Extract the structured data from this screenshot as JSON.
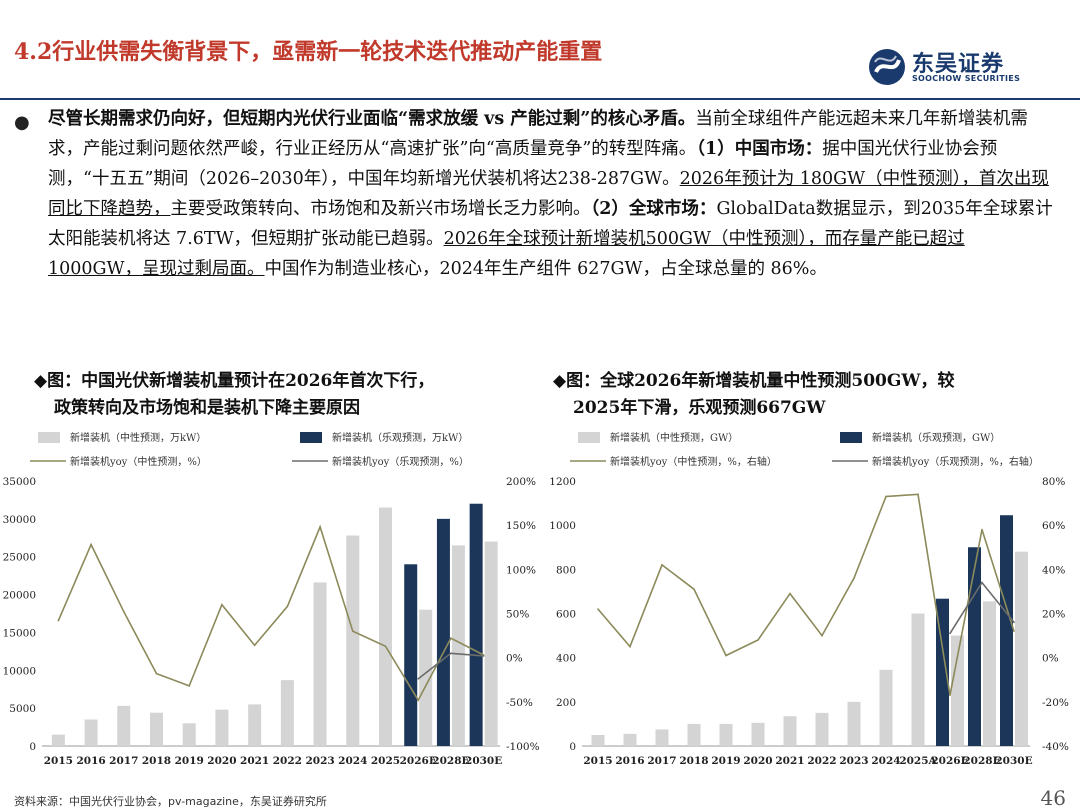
{
  "slide": {
    "title": "4.2行业供需失衡背景下，亟需新一轮技术迭代推动产能重置",
    "logo_cn": "东吴证券",
    "logo_en": "SOOCHOW SECURITIES",
    "body": {
      "p1": "尽管长期需求仍向好，但短期内光伏行业面临“需求放缓 vs 产能过剩”的核心矛盾。",
      "p2": "当前全球组件产能远超未来几年新增装机需求，产能过剩问题依然严峻，行业正经历从“高速扩张”向“高质量竞争”的转型阵痛。",
      "p3": "（1）中国市场：",
      "p4": "据中国光伏行业协会预测，“十五五”期间（2026–2030年），中国年均新增光伏装机将达238-287GW。",
      "p5": "2026年预计为 180GW（中性预测），首次出现同比下降趋势，",
      "p6": "主要受政策转向、市场饱和及新兴市场增长乏力影响。",
      "p7": "（2）全球市场：",
      "p8": "GlobalData数据显示，到2035年全球累计太阳能装机将达 7.6TW，但短期扩张动能已趋弱。",
      "p9": "2026年全球预计新增装机500GW（中性预测），而存量产能已超过1000GW，呈现过剩局面。",
      "p10": "中国作为制造业核心，2024年生产组件 627GW，占全球总量的 86%。"
    },
    "caption_left_1": "◆图：中国光伏新增装机量预计在2026年首次下行，",
    "caption_left_2": "政策转向及市场饱和是装机下降主要原因",
    "caption_right_1": "◆图：全球2026年新增装机量中性预测500GW，较",
    "caption_right_2": "2025年下滑，乐观预测667GW",
    "footer": "资料来源：中国光伏行业协会，pv-magazine，东吴证券研究所",
    "page_number": "46"
  },
  "chart_data": [
    {
      "type": "bar",
      "legend": [
        "新增装机（中性预测，万kW）",
        "新增装机（乐观预测，万kW）",
        "新增装机yoy（中性预测，%）",
        "新增装机yoy（乐观预测，%）"
      ],
      "categories": [
        "2015",
        "2016",
        "2017",
        "2018",
        "2019",
        "2020",
        "2021",
        "2022",
        "2023",
        "2024",
        "2025",
        "2026E",
        "2028E",
        "2030E"
      ],
      "series": [
        {
          "name": "新增装机（中性预测，万kW）",
          "kind": "bar",
          "color": "#d4d4d4",
          "values": [
            1500,
            3500,
            5300,
            4400,
            3000,
            4800,
            5500,
            8700,
            21600,
            27800,
            31500,
            18000,
            26500,
            27000
          ]
        },
        {
          "name": "新增装机（乐观预测，万kW）",
          "kind": "bar",
          "color": "#1c3659",
          "values": [
            null,
            null,
            null,
            null,
            null,
            null,
            null,
            null,
            null,
            null,
            null,
            24000,
            30000,
            32000
          ]
        },
        {
          "name": "新增装机yoy（中性预测，%）",
          "kind": "line",
          "axis": "right",
          "color": "#8c8a5a",
          "values": [
            42,
            128,
            52,
            -18,
            -32,
            60,
            14,
            58,
            148,
            30,
            13,
            -48,
            22,
            3
          ]
        },
        {
          "name": "新增装机yoy（乐观预测，%）",
          "kind": "line",
          "axis": "right",
          "color": "#6b6b6b",
          "values": [
            null,
            null,
            null,
            null,
            null,
            null,
            null,
            null,
            null,
            null,
            null,
            -24,
            5,
            2
          ]
        }
      ],
      "ylim": [
        0,
        35000
      ],
      "yticks": [
        "0",
        "5000",
        "10000",
        "15000",
        "20000",
        "25000",
        "30000",
        "35000"
      ],
      "y2lim": [
        -100,
        200
      ],
      "y2ticks": [
        "-100%",
        "-50%",
        "0%",
        "50%",
        "100%",
        "150%",
        "200%"
      ]
    },
    {
      "type": "bar",
      "legend": [
        "新增装机（中性预测，GW）",
        "新增装机（乐观预测，GW）",
        "新增装机yoy（中性预测，%，右轴）",
        "新增装机yoy（乐观预测，%，右轴）"
      ],
      "categories": [
        "2015",
        "2016",
        "2017",
        "2018",
        "2019",
        "2020",
        "2021",
        "2022",
        "2023",
        "2024",
        "2025A",
        "2026E",
        "2028E",
        "2030E"
      ],
      "series": [
        {
          "name": "新增装机（中性预测，GW）",
          "kind": "bar",
          "color": "#d4d4d4",
          "values": [
            50,
            55,
            75,
            100,
            100,
            105,
            135,
            150,
            200,
            345,
            600,
            500,
            655,
            880
          ]
        },
        {
          "name": "新增装机（乐观预测，GW）",
          "kind": "bar",
          "color": "#1c3659",
          "values": [
            null,
            null,
            null,
            null,
            null,
            null,
            null,
            null,
            null,
            null,
            null,
            667,
            900,
            1045
          ]
        },
        {
          "name": "新增装机yoy（中性预测，%，右轴）",
          "kind": "line",
          "axis": "right",
          "color": "#8c8a5a",
          "values": [
            22,
            5,
            42,
            31,
            1,
            8,
            29,
            10,
            36,
            73,
            74,
            -17,
            58,
            12
          ]
        },
        {
          "name": "新增装机yoy（乐观预测，%，右轴）",
          "kind": "line",
          "axis": "right",
          "color": "#6b6b6b",
          "values": [
            null,
            null,
            null,
            null,
            null,
            null,
            null,
            null,
            null,
            null,
            null,
            11,
            34,
            16
          ]
        }
      ],
      "ylim": [
        0,
        1200
      ],
      "yticks": [
        "0",
        "200",
        "400",
        "600",
        "800",
        "1000",
        "1200"
      ],
      "y2lim": [
        -40,
        80
      ],
      "y2ticks": [
        "-40%",
        "-20%",
        "0%",
        "20%",
        "40%",
        "60%",
        "80%"
      ]
    }
  ]
}
